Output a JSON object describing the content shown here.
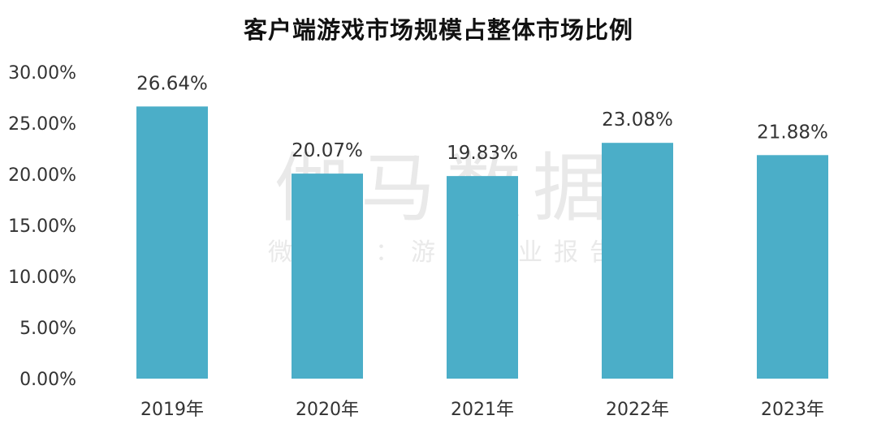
{
  "watermark": {
    "brand": "伽马数据",
    "subtitle": "微信号：游戏产业报告"
  },
  "colors": {
    "bar": "#4BAEC8",
    "text": "#333333",
    "watermark": "#e9e9e9"
  },
  "chart_data": {
    "type": "bar",
    "title": "客户端游戏市场规模占整体市场比例",
    "xlabel": "",
    "ylabel": "",
    "categories": [
      "2019年",
      "2020年",
      "2021年",
      "2022年",
      "2023年"
    ],
    "values": [
      26.64,
      20.07,
      19.83,
      23.08,
      21.88
    ],
    "data_labels": [
      "26.64%",
      "20.07%",
      "19.83%",
      "23.08%",
      "21.88%"
    ],
    "ylim": [
      0,
      30
    ],
    "yticks": [
      0,
      5,
      10,
      15,
      20,
      25,
      30
    ],
    "ytick_labels": [
      "0.00%",
      "5.00%",
      "10.00%",
      "15.00%",
      "20.00%",
      "25.00%",
      "30.00%"
    ],
    "grid": false,
    "legend": "none"
  }
}
